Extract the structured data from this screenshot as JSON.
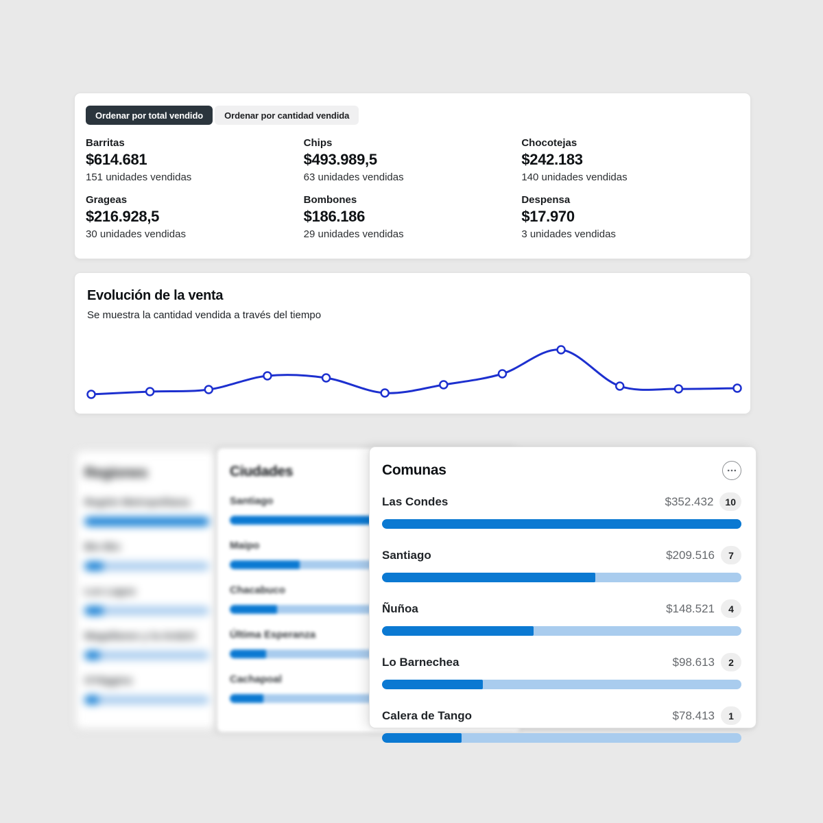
{
  "page": {
    "background": "#e9e9e9"
  },
  "top_stats": {
    "sort_buttons": [
      {
        "label": "Ordenar por total vendido",
        "active": true
      },
      {
        "label": "Ordenar por cantidad vendida",
        "active": false
      }
    ],
    "items": [
      {
        "label": "Barritas",
        "value": "$614.681",
        "units": "151 unidades vendidas"
      },
      {
        "label": "Chips",
        "value": "$493.989,5",
        "units": "63 unidades vendidas"
      },
      {
        "label": "Chocotejas",
        "value": "$242.183",
        "units": "140 unidades vendidas"
      },
      {
        "label": "Grageas",
        "value": "$216.928,5",
        "units": "30 unidades vendidas"
      },
      {
        "label": "Bombones",
        "value": "$186.186",
        "units": "29 unidades vendidas"
      },
      {
        "label": "Despensa",
        "value": "$17.970",
        "units": "3 unidades vendidas"
      }
    ]
  },
  "evolution": {
    "title": "Evolución de la venta",
    "subtitle": "Se muestra la cantidad vendida a través del tiempo",
    "line_color": "#1d30cf"
  },
  "regiones": {
    "title": "Regiones",
    "items": [
      {
        "name": "Región Metropolitana",
        "percent": 100
      },
      {
        "name": "Bio Bio",
        "percent": 15
      },
      {
        "name": "Los Lagos",
        "percent": 15
      },
      {
        "name": "Magallanes y la Antárti",
        "percent": 12
      },
      {
        "name": "O'Higgins",
        "percent": 11
      }
    ]
  },
  "ciudades": {
    "title": "Ciudades",
    "items": [
      {
        "name": "Santiago",
        "percent": 100
      },
      {
        "name": "Maipo",
        "percent": 25
      },
      {
        "name": "Chacabuco",
        "percent": 17
      },
      {
        "name": "Última Esperanza",
        "percent": 13
      },
      {
        "name": "Cachapoal",
        "percent": 12
      }
    ]
  },
  "comunas": {
    "title": "Comunas",
    "items": [
      {
        "name": "Las Condes",
        "value": "$352.432",
        "count": "10",
        "percent": 100
      },
      {
        "name": "Santiago",
        "value": "$209.516",
        "count": "7",
        "percent": 59.4
      },
      {
        "name": "Ñuñoa",
        "value": "$148.521",
        "count": "4",
        "percent": 42.1
      },
      {
        "name": "Lo Barnechea",
        "value": "$98.613",
        "count": "2",
        "percent": 28.0
      },
      {
        "name": "Calera de Tango",
        "value": "$78.413",
        "count": "1",
        "percent": 22.2
      }
    ]
  },
  "colors": {
    "bar_fill": "#0b79d2",
    "bar_track": "#a9ccee",
    "line_blue": "#1d30cf",
    "active_button_bg": "#2b353d",
    "badge_bg": "#eeeeee"
  },
  "chart_data": [
    {
      "type": "line",
      "title": "Evolución de la venta",
      "subtitle": "Se muestra la cantidad vendida a través del tiempo",
      "x": [
        1,
        2,
        3,
        4,
        5,
        6,
        7,
        8,
        9,
        10,
        11,
        12
      ],
      "values": [
        26,
        30,
        33,
        53,
        50,
        28,
        40,
        56,
        91,
        38,
        34,
        35
      ],
      "xlabel": "",
      "ylabel": "",
      "ylim": [
        0,
        110
      ],
      "grid": false,
      "legend": "none",
      "notes": "axes and tick labels not shown; values estimated from relative point heights"
    },
    {
      "type": "bar",
      "title": "Comunas",
      "categories": [
        "Las Condes",
        "Santiago",
        "Ñuñoa",
        "Lo Barnechea",
        "Calera de Tango"
      ],
      "values": [
        352432,
        209516,
        148521,
        98613,
        78413
      ],
      "counts": [
        10,
        7,
        4,
        2,
        1
      ],
      "value_format": "CLP pesos"
    },
    {
      "type": "bar",
      "title": "Ciudades",
      "categories": [
        "Santiago",
        "Maipo",
        "Chacabuco",
        "Última Esperanza",
        "Cachapoal"
      ],
      "values_percent_of_max": [
        100,
        25,
        17,
        13,
        12
      ],
      "notes": "numeric values hidden behind overlapping panel"
    },
    {
      "type": "bar",
      "title": "Regiones",
      "categories": [
        "Región Metropolitana",
        "Bio Bio",
        "Los Lagos",
        "Magallanes y la Antárti",
        "O'Higgins"
      ],
      "values_percent_of_max": [
        100,
        15,
        15,
        12,
        11
      ],
      "notes": "panel blurred; numeric values not visible"
    }
  ]
}
